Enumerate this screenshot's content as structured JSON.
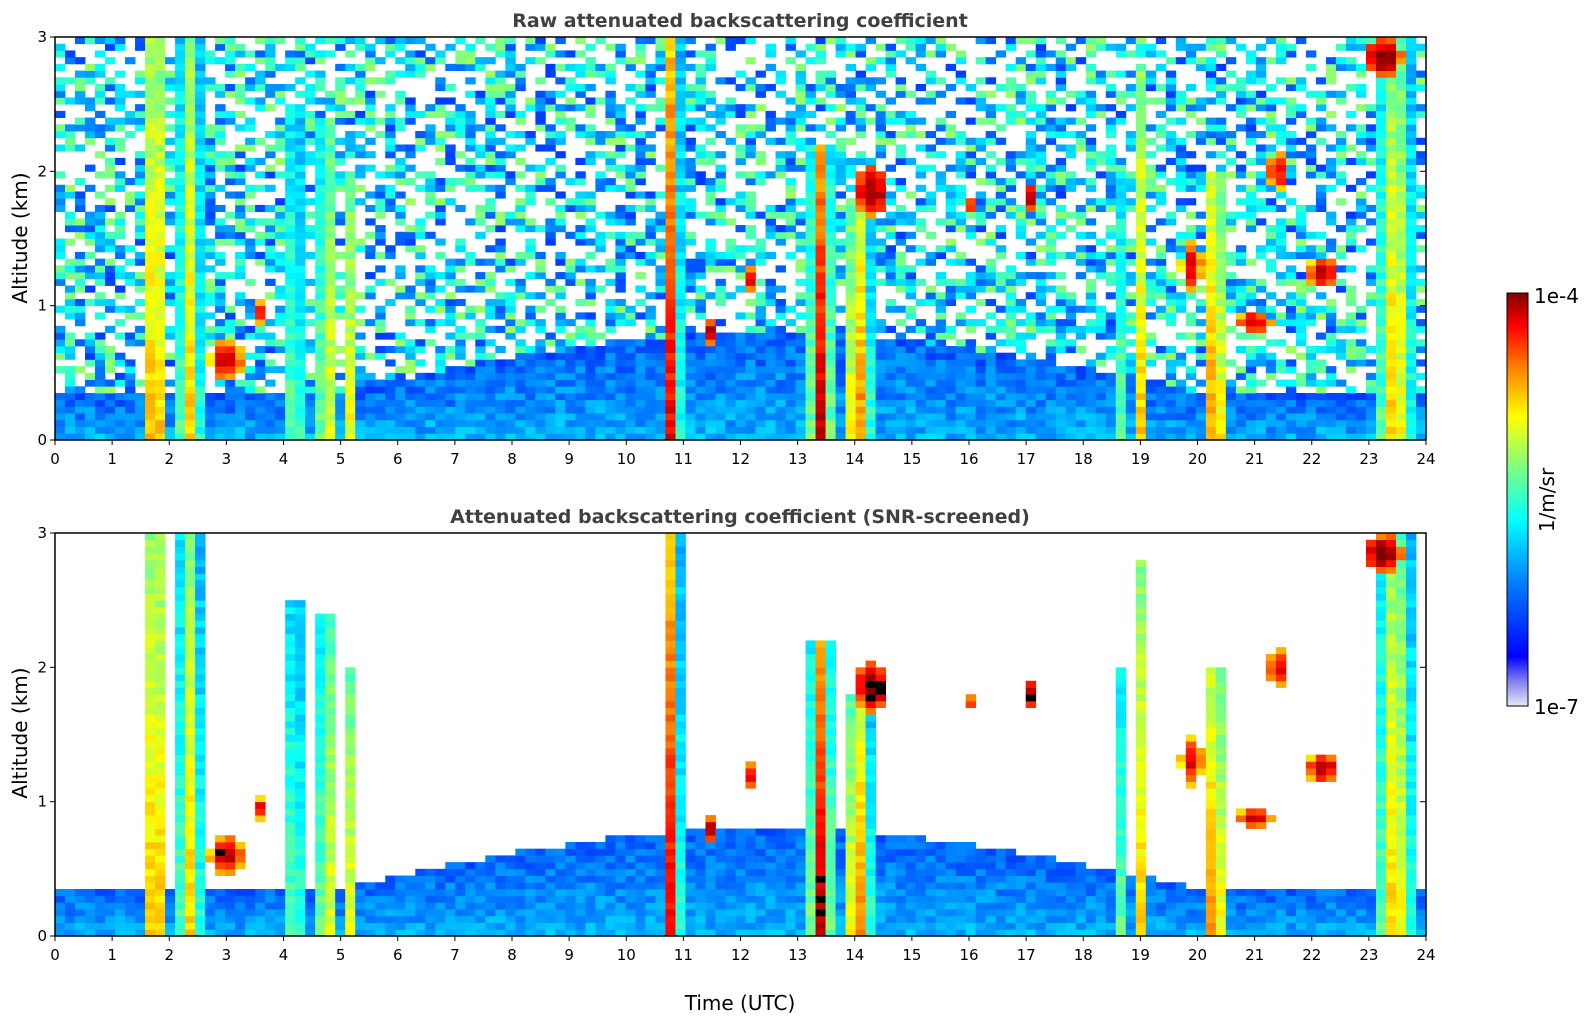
{
  "colors": {
    "colormap": [
      "#e8e8f8",
      "#0000ff",
      "#0080ff",
      "#00ffff",
      "#80ff80",
      "#ffff00",
      "#ff8000",
      "#ff0000",
      "#800000"
    ],
    "screened_black": "#000000",
    "title_color": "#404040"
  },
  "colorbar": {
    "max_label": "1e-4",
    "min_label": "1e-7",
    "unit_label": "1/m/sr",
    "scale": "log"
  },
  "chart_data": [
    {
      "type": "heatmap",
      "title": "Raw attenuated backscattering coefficient",
      "xlabel": "",
      "ylabel": "Altitude (km)",
      "xlim": [
        0,
        24
      ],
      "ylim": [
        0,
        3
      ],
      "xticks": [
        "0",
        "1",
        "2",
        "3",
        "4",
        "5",
        "6",
        "7",
        "8",
        "9",
        "10",
        "11",
        "12",
        "13",
        "14",
        "15",
        "16",
        "17",
        "18",
        "19",
        "20",
        "21",
        "22",
        "23",
        "24"
      ],
      "yticks": [
        "0",
        "1",
        "2",
        "3"
      ]
    },
    {
      "type": "heatmap",
      "title": "Attenuated backscattering coefficient (SNR-screened)",
      "xlabel": "Time (UTC)",
      "ylabel": "Altitude (km)",
      "xlim": [
        0,
        24
      ],
      "ylim": [
        0,
        3
      ],
      "xticks": [
        "0",
        "1",
        "2",
        "3",
        "4",
        "5",
        "6",
        "7",
        "8",
        "9",
        "10",
        "11",
        "12",
        "13",
        "14",
        "15",
        "16",
        "17",
        "18",
        "19",
        "20",
        "21",
        "22",
        "23",
        "24"
      ],
      "yticks": [
        "0",
        "1",
        "2",
        "3"
      ]
    }
  ]
}
